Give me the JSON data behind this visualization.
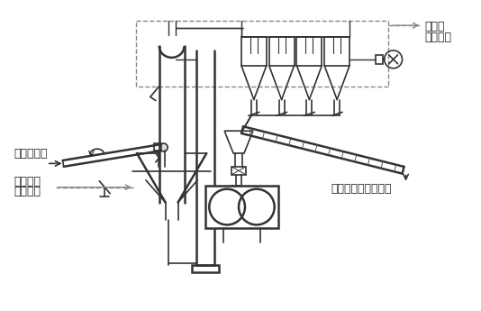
{
  "bg_color": "white",
  "lc": "#333333",
  "dc": "#888888",
  "tc": "#222222",
  "lw": 1.2,
  "lw2": 1.8,
  "labels": {
    "top_right_1": "至窑尾",
    "top_right_2": "废气处理",
    "left_top": "来自配料站",
    "left_bot1": "来自窑尾",
    "left_bot2": "高温风机",
    "right_mid": "入生料均化库提升机"
  },
  "figsize": [
    5.34,
    3.45
  ],
  "dpi": 100
}
